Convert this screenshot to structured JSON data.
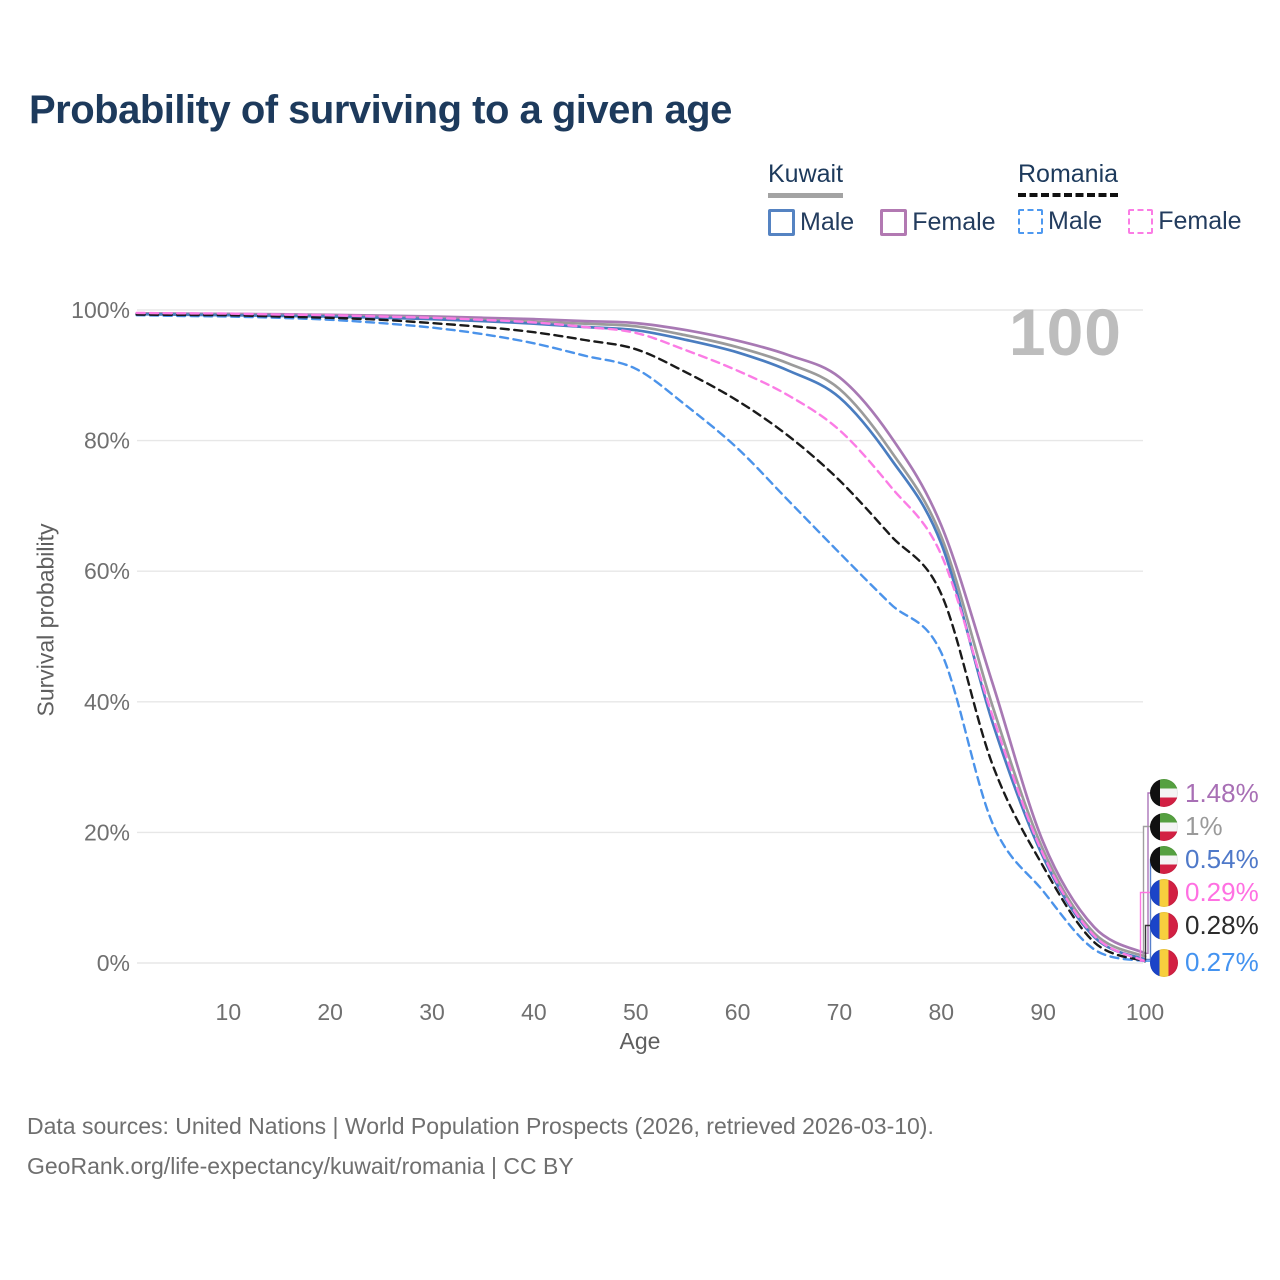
{
  "title": "Probability of surviving to a given age",
  "watermark": "100",
  "legend": {
    "groups": [
      {
        "label": "Kuwait",
        "line_style": "solid",
        "underline_color": "#a3a3a3",
        "items": [
          {
            "label": "Male",
            "color": "#5583c2",
            "dashed": false
          },
          {
            "label": "Female",
            "color": "#b279b2",
            "dashed": false
          }
        ]
      },
      {
        "label": "Romania",
        "line_style": "dashed",
        "underline_color": "#111111",
        "items": [
          {
            "label": "Male",
            "color": "#4e99f0",
            "dashed": true
          },
          {
            "label": "Female",
            "color": "#fb7ce5",
            "dashed": true
          }
        ]
      }
    ]
  },
  "chart_data": {
    "type": "line",
    "title": "Probability of surviving to a given age",
    "xlabel": "Age",
    "ylabel": "Survival probability",
    "xlim": [
      0,
      100
    ],
    "ylim": [
      0,
      100
    ],
    "grid": "horizontal",
    "legend_position": "top-right",
    "x_ticks": [
      {
        "label": "10",
        "value": 10
      },
      {
        "label": "20",
        "value": 20
      },
      {
        "label": "30",
        "value": 30
      },
      {
        "label": "40",
        "value": 40
      },
      {
        "label": "50",
        "value": 50
      },
      {
        "label": "60",
        "value": 60
      },
      {
        "label": "70",
        "value": 70
      },
      {
        "label": "80",
        "value": 80
      },
      {
        "label": "90",
        "value": 90
      },
      {
        "label": "100",
        "value": 100
      }
    ],
    "y_ticks": [
      {
        "label": "100%",
        "value": 100
      },
      {
        "label": "80%",
        "value": 80
      },
      {
        "label": "60%",
        "value": 60
      },
      {
        "label": "40%",
        "value": 40
      },
      {
        "label": "20%",
        "value": 20
      },
      {
        "label": "0%",
        "value": 0
      }
    ],
    "ages": [
      1,
      5,
      10,
      15,
      20,
      25,
      30,
      35,
      40,
      45,
      50,
      55,
      60,
      65,
      70,
      75,
      80,
      85,
      90,
      95,
      100
    ],
    "series": [
      {
        "name": "Kuwait Female",
        "country": "Kuwait",
        "sex": "Female",
        "color": "#a879b4",
        "dashed": false,
        "values": [
          99.5,
          99.45,
          99.4,
          99.35,
          99.25,
          99.15,
          99.0,
          98.8,
          98.6,
          98.3,
          98.0,
          96.9,
          95.3,
          93.1,
          89.7,
          80.7,
          67.0,
          43.0,
          18.5,
          5.5,
          1.48
        ]
      },
      {
        "name": "Kuwait",
        "country": "Kuwait",
        "sex": "Both",
        "color": "#9b9b9b",
        "dashed": false,
        "values": [
          99.4,
          99.35,
          99.3,
          99.2,
          99.1,
          98.95,
          98.8,
          98.5,
          98.2,
          97.9,
          97.5,
          96.1,
          94.3,
          91.8,
          87.9,
          78.5,
          65.3,
          39.5,
          17.3,
          4.6,
          1.0
        ]
      },
      {
        "name": "Kuwait Male",
        "country": "Kuwait",
        "sex": "Male",
        "color": "#4a7dc0",
        "dashed": false,
        "values": [
          99.35,
          99.3,
          99.2,
          99.1,
          99.0,
          98.8,
          98.6,
          98.3,
          97.9,
          97.4,
          96.9,
          95.4,
          93.5,
          90.7,
          86.6,
          77.3,
          64.2,
          37.0,
          16.2,
          4.0,
          0.54
        ]
      },
      {
        "name": "Romania Male",
        "country": "Romania",
        "sex": "Male",
        "color": "#4b93ea",
        "dashed": true,
        "values": [
          99.2,
          99.1,
          99.0,
          98.8,
          98.5,
          98.0,
          97.3,
          96.3,
          94.9,
          93.0,
          91.0,
          85.3,
          78.8,
          70.8,
          62.8,
          55.0,
          47.5,
          21.5,
          11.0,
          2.1,
          0.27
        ]
      },
      {
        "name": "Romania",
        "country": "Romania",
        "sex": "Both",
        "color": "#1a1a1a",
        "dashed": true,
        "values": [
          99.3,
          99.25,
          99.2,
          99.0,
          98.8,
          98.5,
          98.0,
          97.4,
          96.6,
          95.4,
          94.0,
          90.4,
          86.1,
          80.7,
          73.9,
          65.5,
          56.5,
          30.5,
          14.8,
          3.2,
          0.28
        ]
      },
      {
        "name": "Romania Female",
        "country": "Romania",
        "sex": "Female",
        "color": "#fb7ce5",
        "dashed": true,
        "values": [
          99.55,
          99.5,
          99.45,
          99.3,
          99.2,
          99.0,
          98.8,
          98.5,
          98.1,
          97.4,
          96.5,
          93.8,
          90.7,
          86.9,
          81.6,
          73.0,
          62.5,
          38.0,
          16.6,
          4.2,
          0.29
        ]
      }
    ],
    "end_labels": [
      {
        "text": "1.48%",
        "color": "#a86fb5",
        "flag": "kuwait",
        "series": "Kuwait Female"
      },
      {
        "text": "1%",
        "color": "#9a9a9a",
        "flag": "kuwait",
        "series": "Kuwait"
      },
      {
        "text": "0.54%",
        "color": "#4f79c9",
        "flag": "kuwait",
        "series": "Kuwait Male"
      },
      {
        "text": "0.29%",
        "color": "#ff70e2",
        "flag": "romania",
        "series": "Romania Female"
      },
      {
        "text": "0.28%",
        "color": "#2b2b2b",
        "flag": "romania",
        "series": "Romania"
      },
      {
        "text": "0.27%",
        "color": "#4493f0",
        "flag": "romania",
        "series": "Romania Male"
      }
    ]
  },
  "footer": {
    "line1": "Data sources: United Nations | World Population Prospects (2026, retrieved 2026-03-10).",
    "line2": "GeoRank.org/life-expectancy/kuwait/romania | CC BY"
  }
}
